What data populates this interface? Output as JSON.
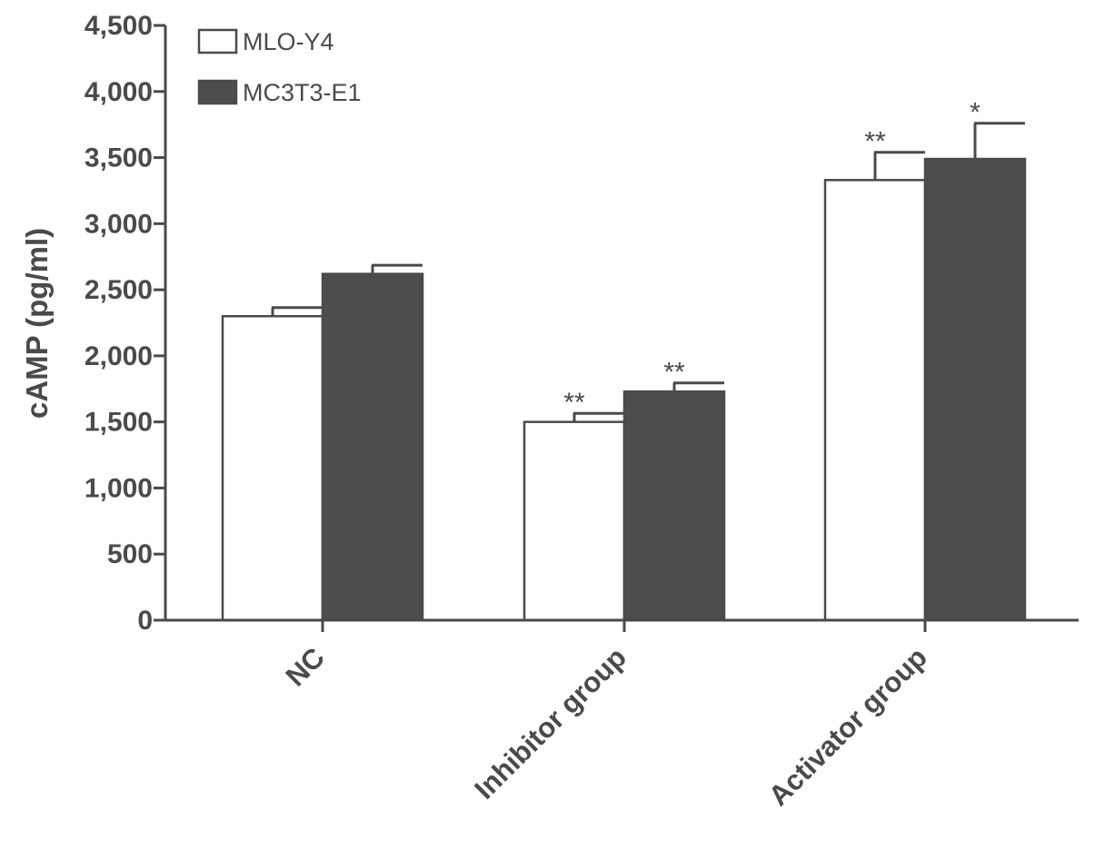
{
  "chart_data": {
    "type": "bar",
    "categories": [
      "NC",
      "Inhibitor group",
      "Activator group"
    ],
    "series": [
      {
        "name": "MLO-Y4",
        "color": "#ffffff",
        "values": [
          2300,
          1500,
          3330
        ],
        "errors": [
          65,
          65,
          210
        ],
        "significance": [
          "",
          "**",
          "**"
        ]
      },
      {
        "name": "MC3T3-E1",
        "color": "#4d4d4d",
        "values": [
          2620,
          1730,
          3490
        ],
        "errors": [
          65,
          65,
          270
        ],
        "significance": [
          "",
          "**",
          "*"
        ]
      }
    ],
    "ylabel": "cAMP (pg/ml)",
    "xlabel": "",
    "ylim": [
      0,
      4500
    ],
    "yticks": [
      0,
      500,
      1000,
      1500,
      2000,
      2500,
      3000,
      3500,
      4000,
      4500
    ],
    "ytick_labels": [
      "0",
      "500",
      "1,000",
      "1,500",
      "2,000",
      "2,500",
      "3,000",
      "3,500",
      "4,000",
      "4,500"
    ],
    "grid": false,
    "legend_position": "top-left"
  }
}
